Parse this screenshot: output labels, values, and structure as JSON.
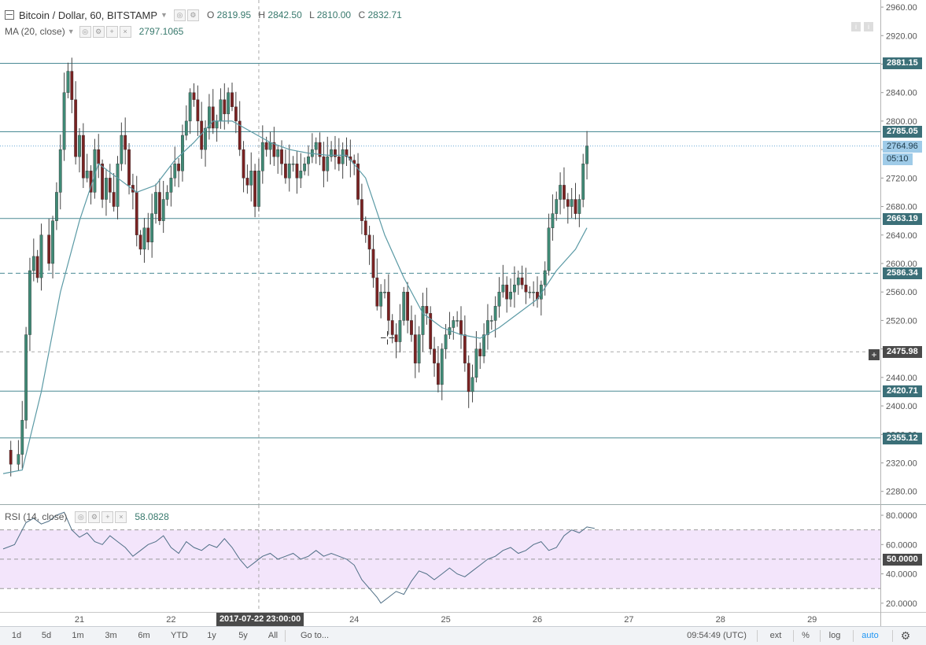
{
  "header": {
    "symbol": "Bitcoin / Dollar, 60, BITSTAMP",
    "ohlc": {
      "o_label": "O",
      "o": "2819.95",
      "h_label": "H",
      "h": "2842.50",
      "l_label": "L",
      "l": "2810.00",
      "c_label": "C",
      "c": "2832.71"
    }
  },
  "ma": {
    "label": "MA (20, close)",
    "value": "2797.1065"
  },
  "rsi": {
    "label": "RSI (14, close)",
    "value": "58.0828"
  },
  "price_axis": {
    "ticks": [
      "2960.00",
      "2920.00",
      "2880.00",
      "2840.00",
      "2800.00",
      "2760.00",
      "2720.00",
      "2680.00",
      "2640.00",
      "2600.00",
      "2560.00",
      "2520.00",
      "2480.00",
      "2440.00",
      "2400.00",
      "2360.00",
      "2320.00",
      "2280.00"
    ],
    "range": [
      2262,
      2970
    ]
  },
  "rsi_axis": {
    "ticks": [
      "80.0000",
      "60.0000",
      "40.0000",
      "20.0000"
    ],
    "tick_values": [
      80,
      60,
      40,
      20
    ],
    "range": [
      14,
      87
    ],
    "band": [
      30,
      70
    ],
    "mid": 50,
    "mid_tag": "50.0000"
  },
  "levels": [
    {
      "label": "2881.15",
      "price": 2881.15,
      "style": "solid"
    },
    {
      "label": "2785.05",
      "price": 2785.05,
      "style": "solid"
    },
    {
      "label": "2663.19",
      "price": 2663.19,
      "style": "solid"
    },
    {
      "label": "2586.34",
      "price": 2586.34,
      "style": "dashed"
    },
    {
      "label": "2420.71",
      "price": 2420.71,
      "style": "solid"
    },
    {
      "label": "2355.12",
      "price": 2355.12,
      "style": "solid"
    }
  ],
  "last_price": {
    "label": "2764.96",
    "price": 2764.96,
    "countdown": "05:10"
  },
  "crosshair": {
    "price_label": "2475.98",
    "price": 2475.98,
    "time_label": "2017-07-22 23:00:00",
    "plus": "+"
  },
  "time_axis": {
    "labels": [
      {
        "label": "21",
        "idx": 20
      },
      {
        "label": "22",
        "idx": 44
      },
      {
        "label": "24",
        "idx": 92
      },
      {
        "label": "25",
        "idx": 116
      },
      {
        "label": "26",
        "idx": 140
      },
      {
        "label": "27",
        "idx": 164
      },
      {
        "label": "28",
        "idx": 188
      },
      {
        "label": "29",
        "idx": 212
      }
    ],
    "crosshair_idx": 67
  },
  "toolbar": {
    "ranges": [
      "1d",
      "5d",
      "1m",
      "3m",
      "6m",
      "YTD",
      "1y",
      "5y",
      "All"
    ],
    "goto": "Go to...",
    "clock": "09:54:49 (UTC)",
    "ext": "ext",
    "percent": "%",
    "log": "log",
    "auto": "auto"
  },
  "colors": {
    "up": "#3f8a76",
    "down": "#7a2222",
    "ma": "#5b9aa5",
    "level": "#4a8a94",
    "rsi_line": "#4f6f86",
    "rsi_band": "#f3e5fb"
  },
  "chart_data": {
    "type": "candlestick",
    "title": "Bitcoin / Dollar, 60, BITSTAMP",
    "candles_close_path": [
      [
        0,
        2338
      ],
      [
        2,
        2318
      ],
      [
        4,
        2332
      ],
      [
        5,
        2380
      ],
      [
        6,
        2500
      ],
      [
        7,
        2590
      ],
      [
        8,
        2610
      ],
      [
        9,
        2580
      ],
      [
        10,
        2640
      ],
      [
        12,
        2600
      ],
      [
        13,
        2660
      ],
      [
        14,
        2700
      ],
      [
        15,
        2760
      ],
      [
        16,
        2840
      ],
      [
        17,
        2870
      ],
      [
        18,
        2830
      ],
      [
        19,
        2750
      ],
      [
        20,
        2780
      ],
      [
        21,
        2720
      ],
      [
        22,
        2730
      ],
      [
        23,
        2700
      ],
      [
        24,
        2760
      ],
      [
        25,
        2740
      ],
      [
        26,
        2690
      ],
      [
        27,
        2720
      ],
      [
        28,
        2700
      ],
      [
        29,
        2680
      ],
      [
        30,
        2740
      ],
      [
        31,
        2780
      ],
      [
        32,
        2760
      ],
      [
        33,
        2710
      ],
      [
        34,
        2700
      ],
      [
        35,
        2640
      ],
      [
        36,
        2620
      ],
      [
        37,
        2650
      ],
      [
        38,
        2630
      ],
      [
        39,
        2670
      ],
      [
        40,
        2700
      ],
      [
        41,
        2660
      ],
      [
        42,
        2690
      ],
      [
        43,
        2700
      ],
      [
        44,
        2720
      ],
      [
        45,
        2740
      ],
      [
        46,
        2730
      ],
      [
        47,
        2780
      ],
      [
        48,
        2800
      ],
      [
        49,
        2840
      ],
      [
        50,
        2830
      ],
      [
        51,
        2800
      ],
      [
        52,
        2760
      ],
      [
        53,
        2790
      ],
      [
        54,
        2820
      ],
      [
        55,
        2790
      ],
      [
        56,
        2800
      ],
      [
        57,
        2830
      ],
      [
        58,
        2810
      ],
      [
        59,
        2840
      ],
      [
        60,
        2820
      ],
      [
        61,
        2800
      ],
      [
        62,
        2760
      ],
      [
        63,
        2720
      ],
      [
        64,
        2710
      ],
      [
        65,
        2730
      ],
      [
        66,
        2680
      ],
      [
        67,
        2730
      ],
      [
        68,
        2770
      ],
      [
        69,
        2760
      ],
      [
        70,
        2770
      ],
      [
        71,
        2750
      ],
      [
        72,
        2760
      ],
      [
        73,
        2740
      ],
      [
        74,
        2720
      ],
      [
        75,
        2740
      ],
      [
        76,
        2740
      ],
      [
        77,
        2720
      ],
      [
        78,
        2730
      ],
      [
        79,
        2740
      ],
      [
        80,
        2750
      ],
      [
        81,
        2760
      ],
      [
        82,
        2770
      ],
      [
        83,
        2750
      ],
      [
        84,
        2730
      ],
      [
        85,
        2750
      ],
      [
        86,
        2760
      ],
      [
        87,
        2750
      ],
      [
        88,
        2740
      ],
      [
        89,
        2760
      ],
      [
        90,
        2750
      ],
      [
        91,
        2745
      ],
      [
        92,
        2740
      ],
      [
        93,
        2690
      ],
      [
        94,
        2660
      ],
      [
        95,
        2640
      ],
      [
        96,
        2620
      ],
      [
        97,
        2580
      ],
      [
        98,
        2540
      ],
      [
        99,
        2560
      ],
      [
        100,
        2560
      ],
      [
        101,
        2520
      ],
      [
        102,
        2500
      ],
      [
        103,
        2490
      ],
      [
        104,
        2520
      ],
      [
        105,
        2560
      ],
      [
        106,
        2520
      ],
      [
        107,
        2500
      ],
      [
        108,
        2460
      ],
      [
        109,
        2500
      ],
      [
        110,
        2540
      ],
      [
        111,
        2530
      ],
      [
        112,
        2480
      ],
      [
        113,
        2460
      ],
      [
        114,
        2430
      ],
      [
        115,
        2480
      ],
      [
        116,
        2500
      ],
      [
        117,
        2510
      ],
      [
        118,
        2520
      ],
      [
        119,
        2520
      ],
      [
        120,
        2500
      ],
      [
        121,
        2460
      ],
      [
        122,
        2420
      ],
      [
        123,
        2440
      ],
      [
        124,
        2480
      ],
      [
        125,
        2470
      ],
      [
        126,
        2500
      ],
      [
        127,
        2520
      ],
      [
        128,
        2520
      ],
      [
        129,
        2540
      ],
      [
        130,
        2560
      ],
      [
        131,
        2570
      ],
      [
        132,
        2550
      ],
      [
        133,
        2560
      ],
      [
        134,
        2570
      ],
      [
        135,
        2580
      ],
      [
        136,
        2570
      ],
      [
        137,
        2560
      ],
      [
        138,
        2560
      ],
      [
        139,
        2560
      ],
      [
        140,
        2550
      ],
      [
        141,
        2570
      ],
      [
        142,
        2590
      ],
      [
        143,
        2650
      ],
      [
        144,
        2670
      ],
      [
        145,
        2690
      ],
      [
        146,
        2710
      ],
      [
        147,
        2690
      ],
      [
        148,
        2680
      ],
      [
        149,
        2690
      ],
      [
        150,
        2670
      ],
      [
        151,
        2690
      ],
      [
        152,
        2740
      ],
      [
        153,
        2765
      ]
    ],
    "ma20_path": [
      [
        0,
        2305
      ],
      [
        5,
        2310
      ],
      [
        10,
        2420
      ],
      [
        15,
        2560
      ],
      [
        20,
        2660
      ],
      [
        25,
        2740
      ],
      [
        30,
        2720
      ],
      [
        35,
        2700
      ],
      [
        40,
        2710
      ],
      [
        45,
        2745
      ],
      [
        50,
        2770
      ],
      [
        55,
        2800
      ],
      [
        60,
        2800
      ],
      [
        65,
        2785
      ],
      [
        70,
        2770
      ],
      [
        75,
        2760
      ],
      [
        80,
        2755
      ],
      [
        85,
        2752
      ],
      [
        90,
        2752
      ],
      [
        95,
        2720
      ],
      [
        100,
        2640
      ],
      [
        105,
        2580
      ],
      [
        110,
        2530
      ],
      [
        115,
        2510
      ],
      [
        120,
        2500
      ],
      [
        125,
        2495
      ],
      [
        130,
        2510
      ],
      [
        135,
        2530
      ],
      [
        140,
        2550
      ],
      [
        145,
        2590
      ],
      [
        150,
        2620
      ],
      [
        153,
        2650
      ]
    ],
    "rsi_path": [
      [
        0,
        57
      ],
      [
        3,
        60
      ],
      [
        6,
        75
      ],
      [
        8,
        78
      ],
      [
        10,
        74
      ],
      [
        12,
        76
      ],
      [
        14,
        80
      ],
      [
        16,
        82
      ],
      [
        18,
        70
      ],
      [
        20,
        65
      ],
      [
        22,
        68
      ],
      [
        24,
        62
      ],
      [
        26,
        60
      ],
      [
        28,
        66
      ],
      [
        30,
        62
      ],
      [
        32,
        58
      ],
      [
        34,
        52
      ],
      [
        36,
        56
      ],
      [
        38,
        60
      ],
      [
        40,
        62
      ],
      [
        42,
        66
      ],
      [
        44,
        58
      ],
      [
        46,
        54
      ],
      [
        48,
        62
      ],
      [
        50,
        58
      ],
      [
        52,
        56
      ],
      [
        54,
        60
      ],
      [
        56,
        58
      ],
      [
        58,
        64
      ],
      [
        60,
        58
      ],
      [
        62,
        50
      ],
      [
        64,
        44
      ],
      [
        66,
        48
      ],
      [
        68,
        52
      ],
      [
        70,
        54
      ],
      [
        72,
        50
      ],
      [
        74,
        52
      ],
      [
        76,
        54
      ],
      [
        78,
        50
      ],
      [
        80,
        52
      ],
      [
        82,
        56
      ],
      [
        84,
        52
      ],
      [
        86,
        54
      ],
      [
        88,
        52
      ],
      [
        90,
        50
      ],
      [
        92,
        46
      ],
      [
        94,
        36
      ],
      [
        96,
        30
      ],
      [
        98,
        24
      ],
      [
        99,
        20
      ],
      [
        101,
        24
      ],
      [
        103,
        28
      ],
      [
        105,
        26
      ],
      [
        107,
        35
      ],
      [
        109,
        42
      ],
      [
        111,
        40
      ],
      [
        113,
        36
      ],
      [
        115,
        40
      ],
      [
        117,
        44
      ],
      [
        119,
        40
      ],
      [
        121,
        38
      ],
      [
        123,
        42
      ],
      [
        125,
        46
      ],
      [
        127,
        50
      ],
      [
        129,
        52
      ],
      [
        131,
        56
      ],
      [
        133,
        58
      ],
      [
        135,
        54
      ],
      [
        137,
        56
      ],
      [
        139,
        60
      ],
      [
        141,
        62
      ],
      [
        143,
        56
      ],
      [
        145,
        58
      ],
      [
        147,
        66
      ],
      [
        149,
        70
      ],
      [
        151,
        68
      ],
      [
        153,
        72
      ],
      [
        155,
        71
      ]
    ]
  }
}
